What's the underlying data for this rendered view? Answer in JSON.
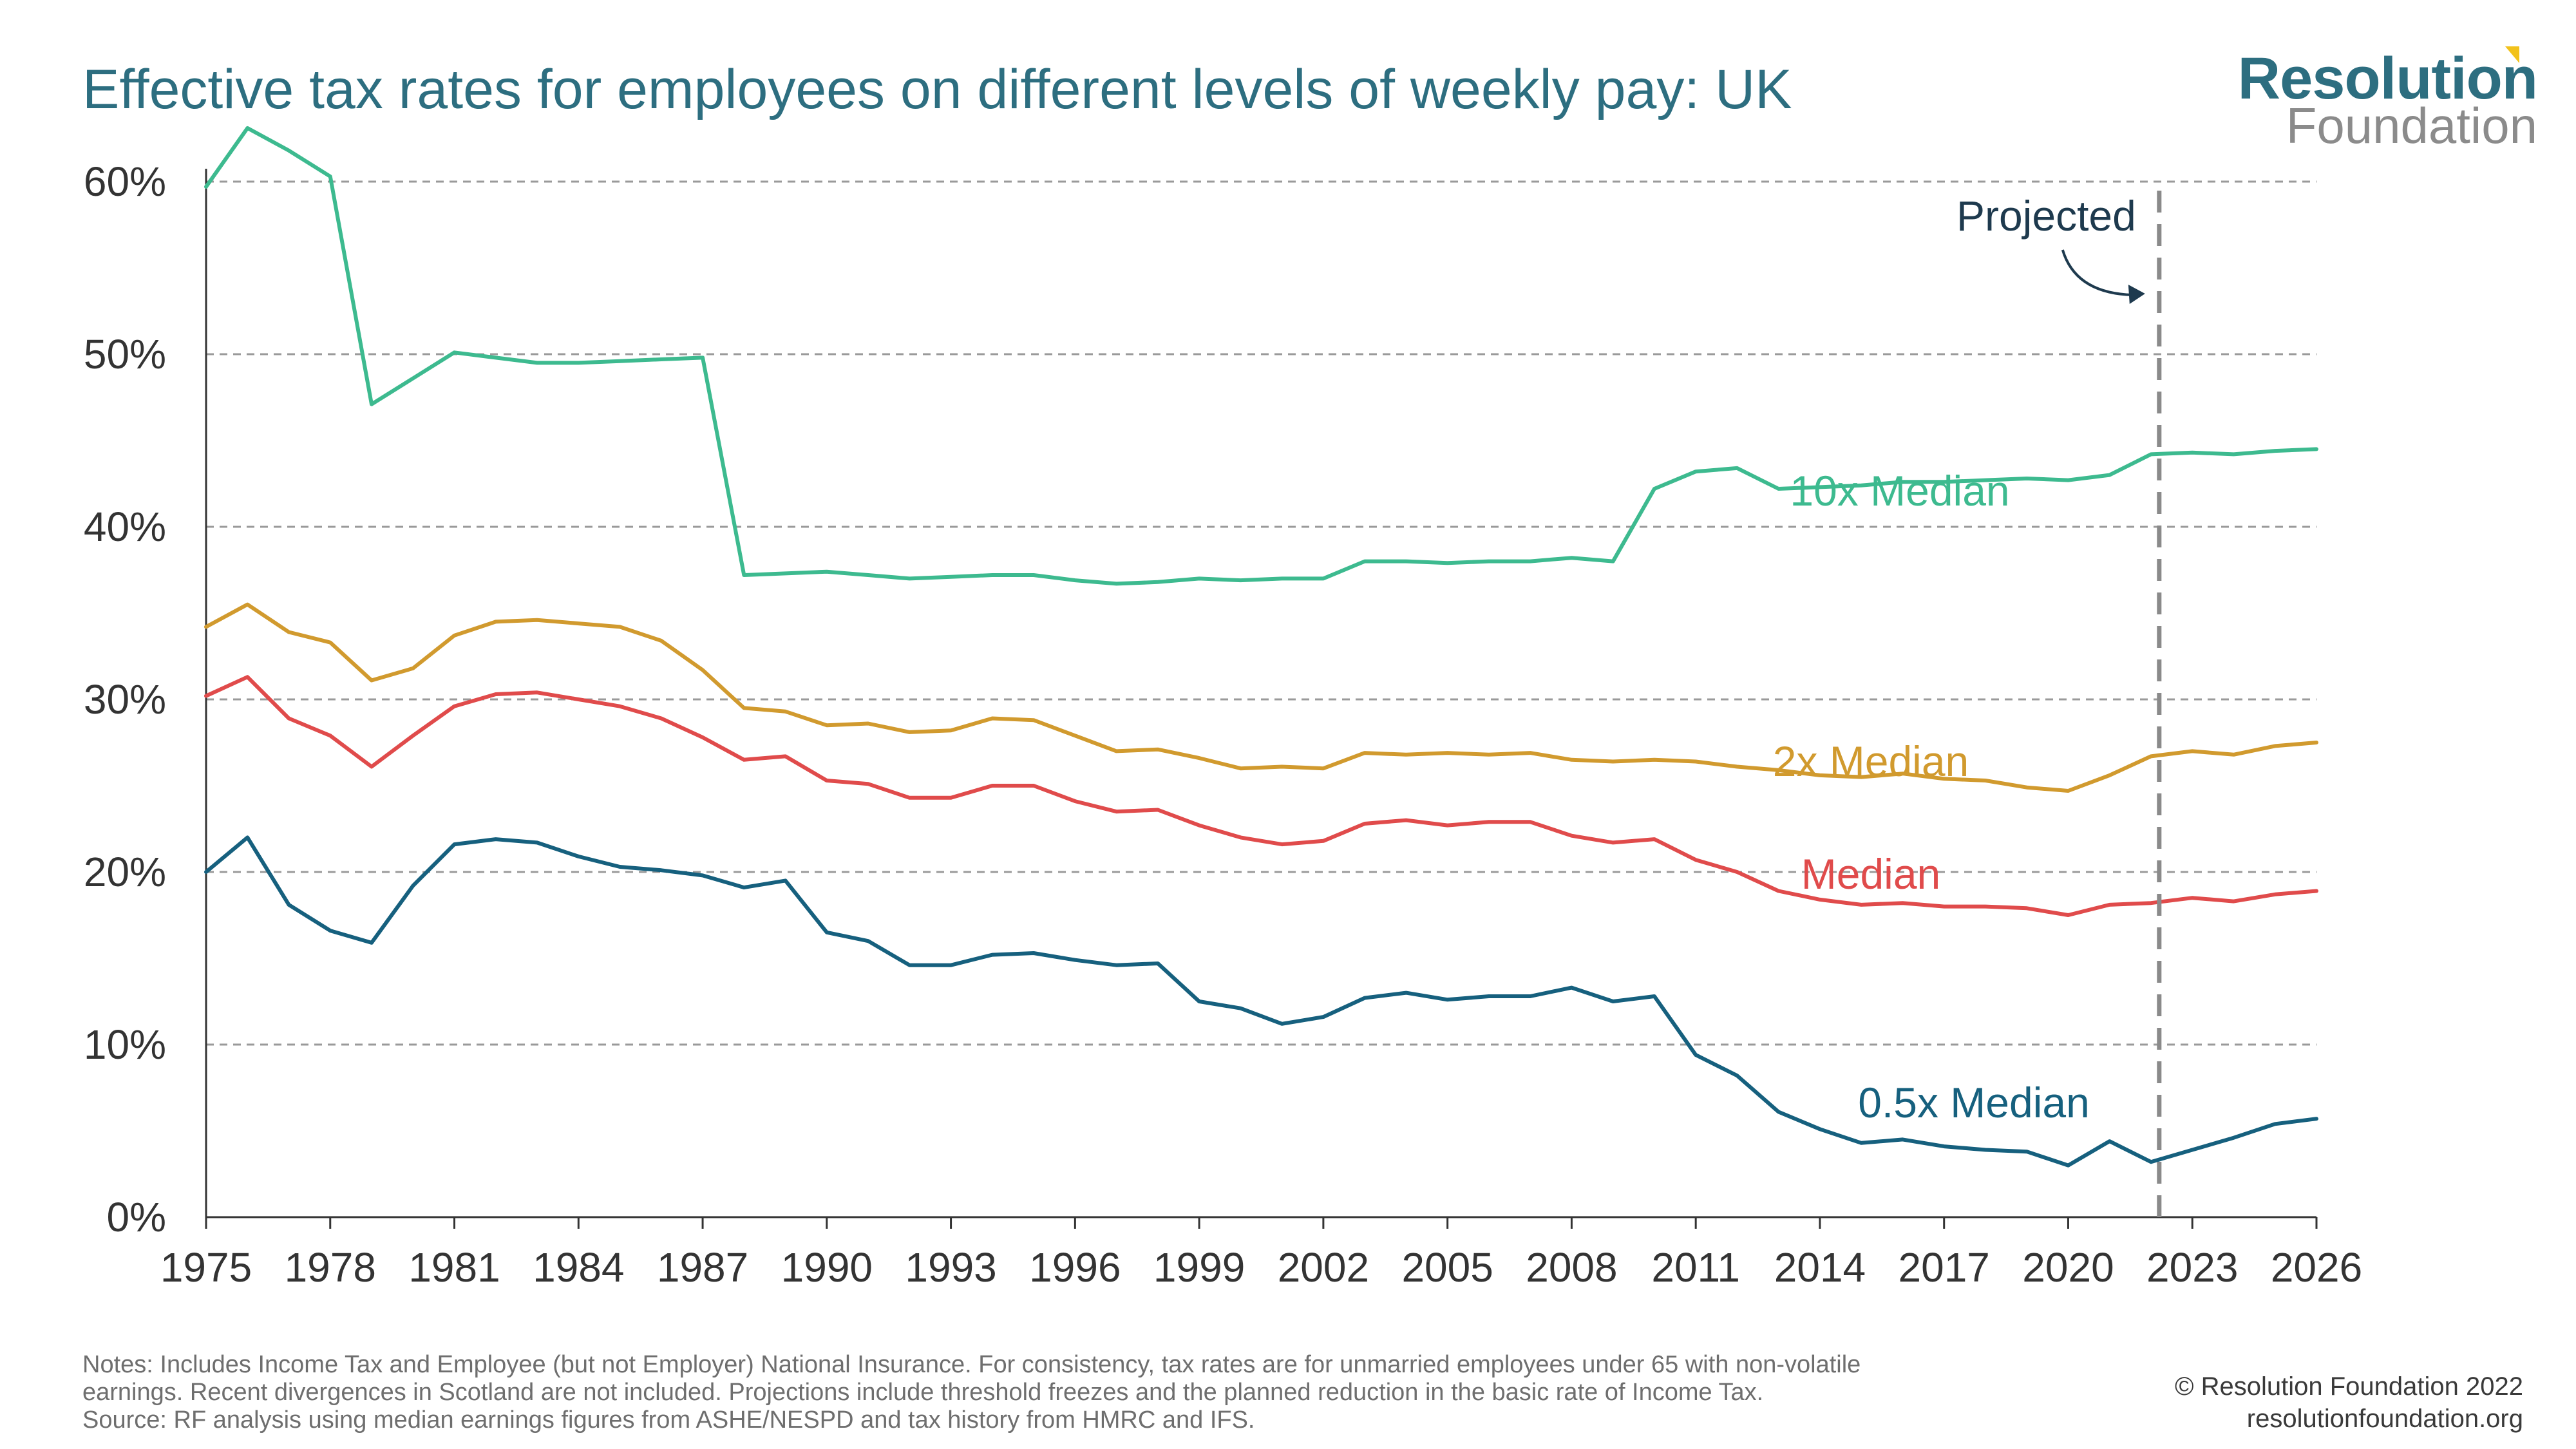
{
  "header": {
    "title": "Effective tax rates for employees on different levels of weekly pay: UK"
  },
  "logo": {
    "line1": "Resolution",
    "line2": "Foundation",
    "accent_color": "#f2c21b"
  },
  "footer": {
    "notes": [
      "Notes: Includes Income Tax and Employee (but not Employer) National Insurance. For consistency, tax rates are for unmarried employees under 65 with non-volatile",
      "earnings. Recent divergences in Scotland are not included. Projections include threshold freezes and the planned reduction in the basic rate of Income Tax.",
      "Source: RF analysis using median earnings figures from ASHE/NESPD and tax history from HMRC and IFS."
    ],
    "copyright": "© Resolution Foundation 2022",
    "website": "resolutionfoundation.org"
  },
  "chart_data": {
    "type": "line",
    "x": [
      1975,
      1976,
      1977,
      1978,
      1979,
      1980,
      1981,
      1982,
      1983,
      1984,
      1985,
      1986,
      1987,
      1988,
      1989,
      1990,
      1991,
      1992,
      1993,
      1994,
      1995,
      1996,
      1997,
      1998,
      1999,
      2000,
      2001,
      2002,
      2003,
      2004,
      2005,
      2006,
      2007,
      2008,
      2009,
      2010,
      2011,
      2012,
      2013,
      2014,
      2015,
      2016,
      2017,
      2018,
      2019,
      2020,
      2021,
      2022,
      2023,
      2024,
      2025,
      2026
    ],
    "xlim": [
      1975,
      2026
    ],
    "ylim": [
      0,
      60
    ],
    "x_ticks": [
      "1975",
      "1978",
      "1981",
      "1984",
      "1987",
      "1990",
      "1993",
      "1996",
      "1999",
      "2002",
      "2005",
      "2008",
      "2011",
      "2014",
      "2017",
      "2020",
      "2023",
      "2026"
    ],
    "y_ticks": [
      "0%",
      "10%",
      "20%",
      "30%",
      "40%",
      "50%",
      "60%"
    ],
    "grid": "horizontal dashed",
    "projection": {
      "start_x": 2022.2,
      "label": "Projected"
    },
    "series": [
      {
        "name": "10x Median",
        "color": "#3dba8f",
        "values": [
          59.7,
          63.1,
          61.8,
          60.3,
          47.1,
          48.6,
          50.1,
          49.8,
          49.5,
          49.5,
          49.6,
          49.7,
          49.8,
          37.2,
          37.3,
          37.4,
          37.2,
          37.0,
          37.1,
          37.2,
          37.2,
          36.9,
          36.7,
          36.8,
          37.0,
          36.9,
          37.0,
          37.0,
          38.0,
          38.0,
          37.9,
          38.0,
          38.0,
          38.2,
          38.0,
          42.2,
          43.2,
          43.4,
          42.2,
          42.3,
          42.4,
          42.6,
          42.6,
          42.7,
          42.8,
          42.7,
          43.0,
          44.2,
          44.3,
          44.2,
          44.4,
          44.5
        ]
      },
      {
        "name": "2x Median",
        "color": "#d19a2e",
        "values": [
          34.2,
          35.5,
          33.9,
          33.3,
          31.1,
          31.8,
          33.7,
          34.5,
          34.6,
          34.4,
          34.2,
          33.4,
          31.7,
          29.5,
          29.3,
          28.5,
          28.6,
          28.1,
          28.2,
          28.9,
          28.8,
          27.9,
          27.0,
          27.1,
          26.6,
          26.0,
          26.1,
          26.0,
          26.9,
          26.8,
          26.9,
          26.8,
          26.9,
          26.5,
          26.4,
          26.5,
          26.4,
          26.1,
          25.9,
          25.6,
          25.5,
          25.7,
          25.4,
          25.3,
          24.9,
          24.7,
          25.6,
          26.7,
          27.0,
          26.8,
          27.3,
          27.5
        ]
      },
      {
        "name": "Median",
        "color": "#e04b4b",
        "values": [
          30.2,
          31.3,
          28.9,
          27.9,
          26.1,
          27.9,
          29.6,
          30.3,
          30.4,
          30.0,
          29.6,
          28.9,
          27.8,
          26.5,
          26.7,
          25.3,
          25.1,
          24.3,
          24.3,
          25.0,
          25.0,
          24.1,
          23.5,
          23.6,
          22.7,
          22.0,
          21.6,
          21.8,
          22.8,
          23.0,
          22.7,
          22.9,
          22.9,
          22.1,
          21.7,
          21.9,
          20.7,
          20.0,
          18.9,
          18.4,
          18.1,
          18.2,
          18.0,
          18.0,
          17.9,
          17.5,
          18.1,
          18.2,
          18.5,
          18.3,
          18.7,
          18.9
        ]
      },
      {
        "name": "0.5x Median",
        "color": "#16607e",
        "values": [
          20.0,
          22.0,
          18.1,
          16.6,
          15.9,
          19.2,
          21.6,
          21.9,
          21.7,
          20.9,
          20.3,
          20.1,
          19.8,
          19.1,
          19.5,
          16.5,
          16.0,
          14.6,
          14.6,
          15.2,
          15.3,
          14.9,
          14.6,
          14.7,
          12.5,
          12.1,
          11.2,
          11.6,
          12.7,
          13.0,
          12.6,
          12.8,
          12.8,
          13.3,
          12.5,
          12.8,
          9.4,
          8.2,
          6.1,
          5.1,
          4.3,
          4.5,
          4.1,
          3.9,
          3.8,
          3.0,
          4.4,
          3.2,
          3.9,
          4.6,
          5.4,
          5.7
        ]
      }
    ]
  }
}
